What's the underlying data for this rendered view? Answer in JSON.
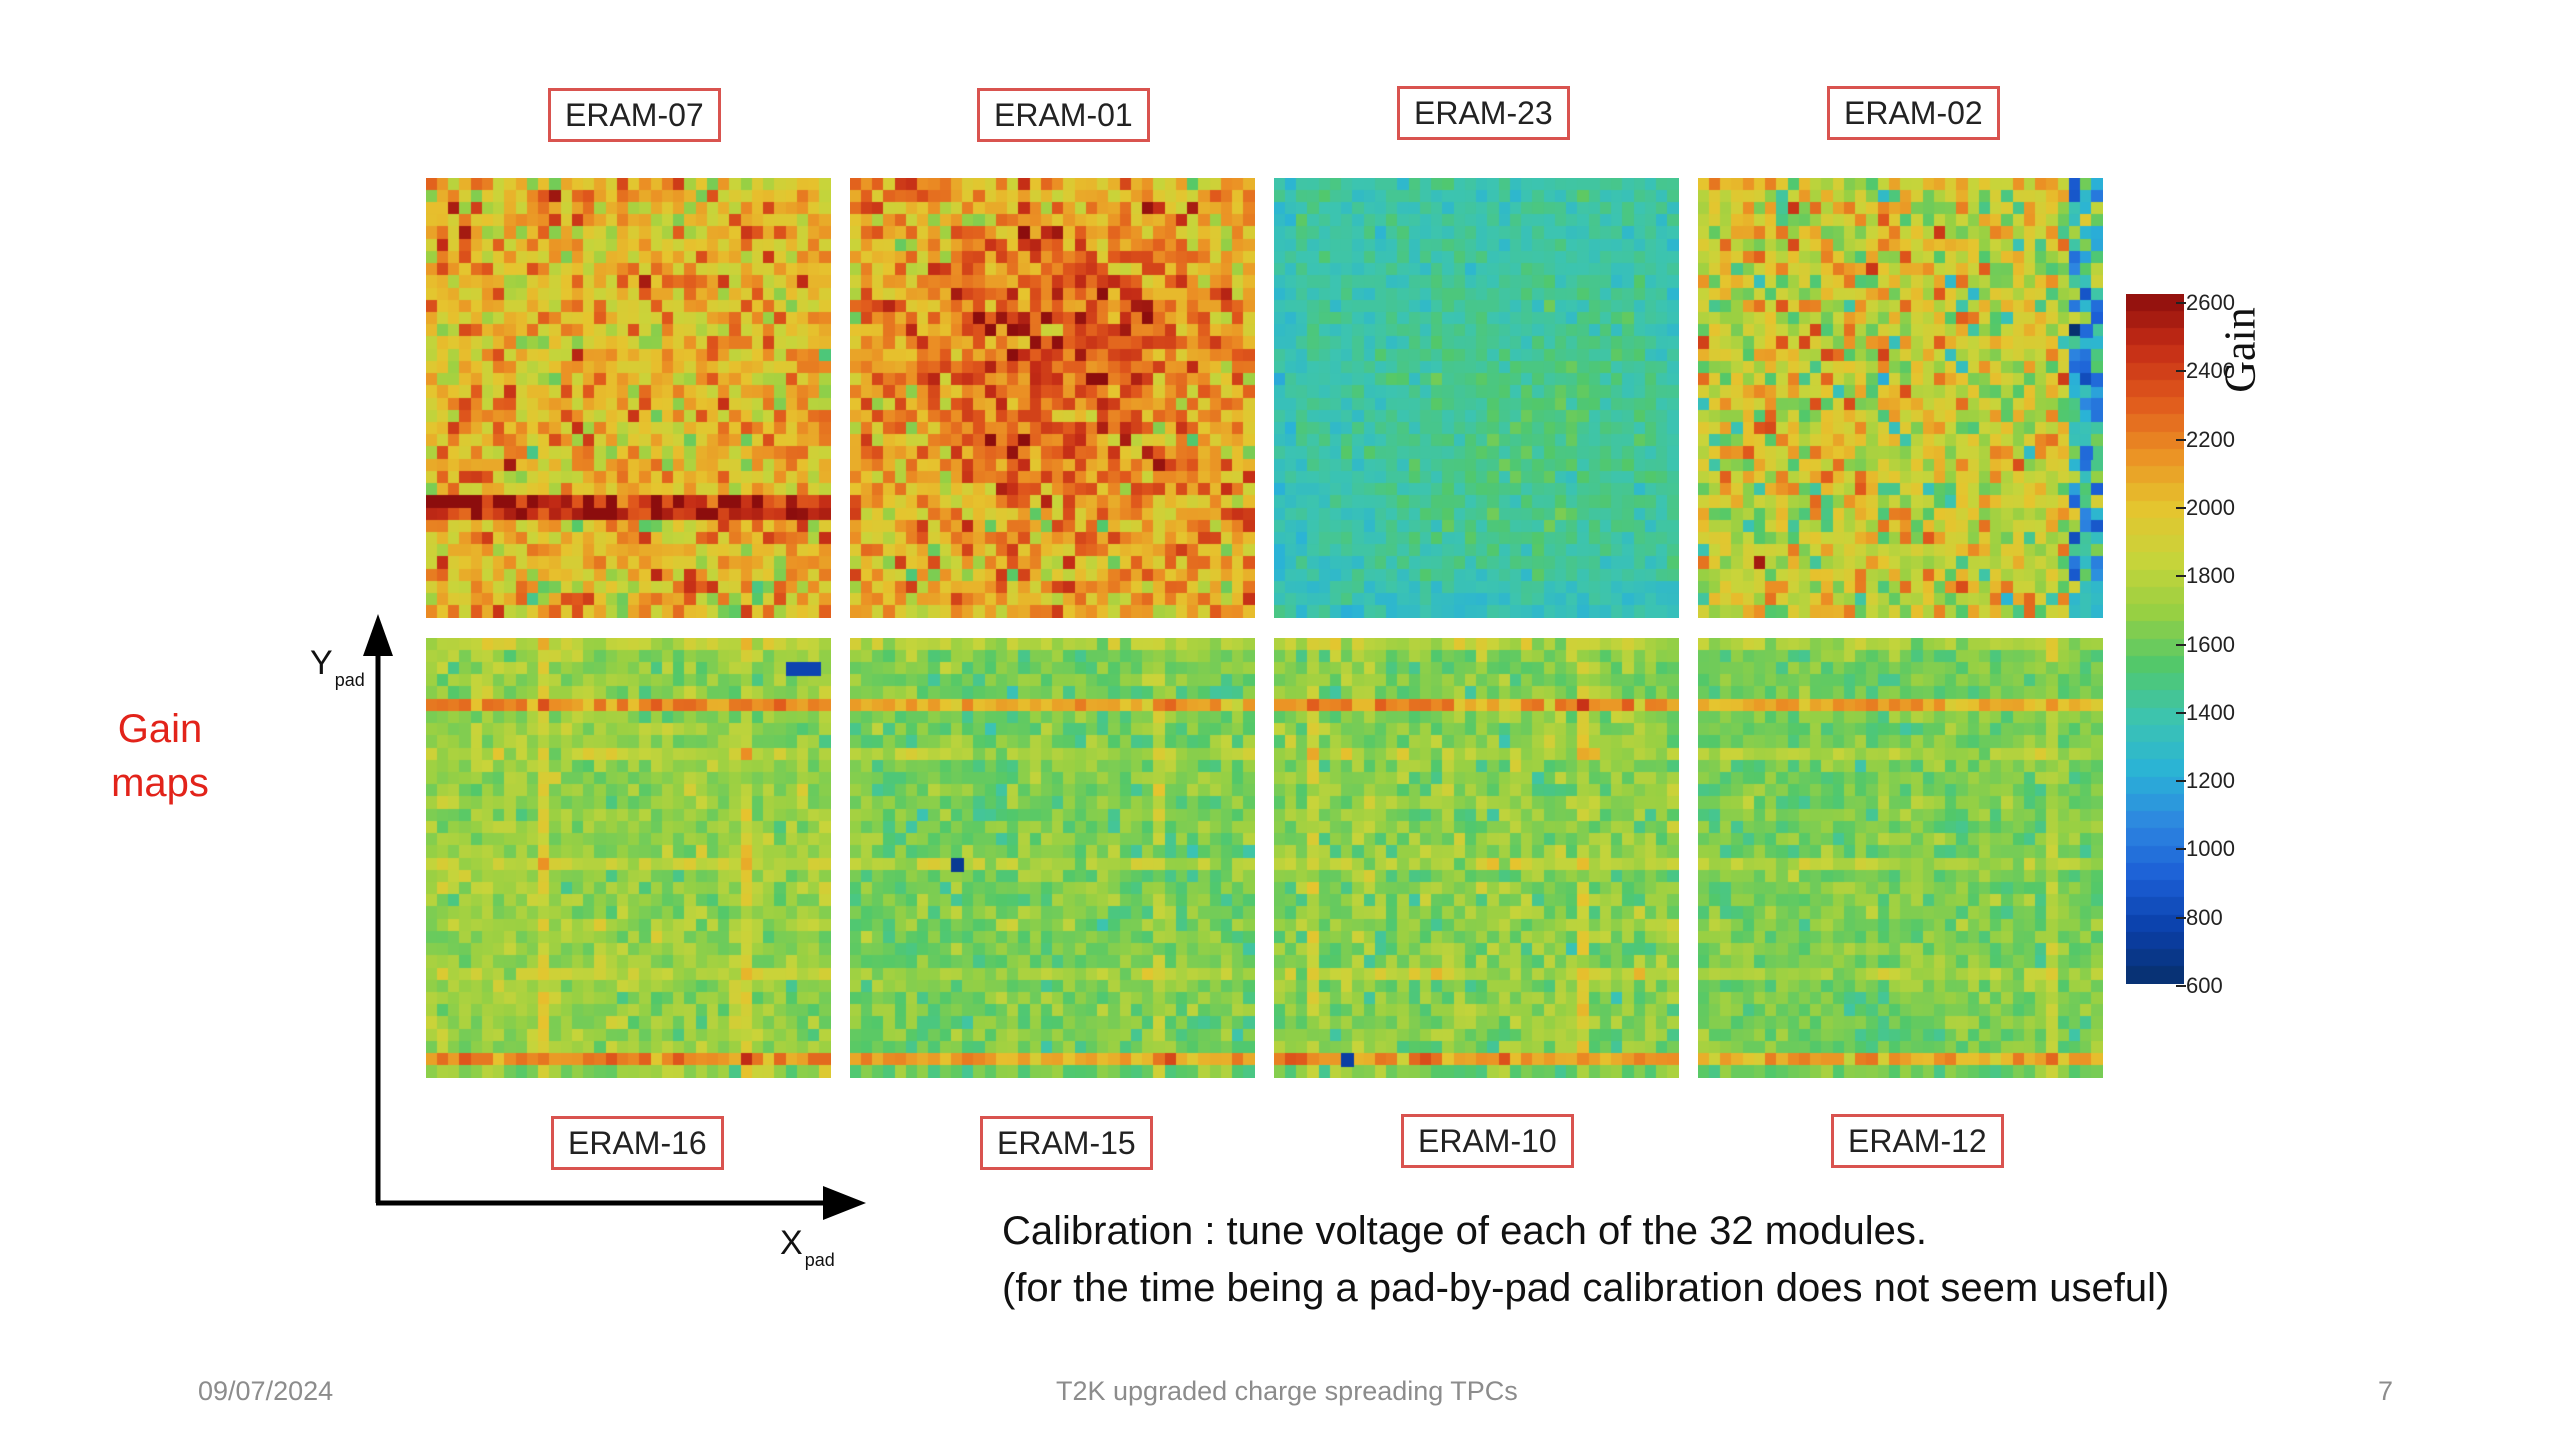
{
  "modules": [
    {
      "id": "ERAM-07",
      "row": 0,
      "col": 0,
      "level": 2000,
      "sigma": 190,
      "hot_rows": [
        26,
        27
      ],
      "extra_cols": [],
      "cold_spots": []
    },
    {
      "id": "ERAM-01",
      "row": 0,
      "col": 1,
      "level": 2050,
      "sigma": 190,
      "hot_rows": [],
      "extra_cols": [],
      "cold_spots": []
    },
    {
      "id": "ERAM-23",
      "row": 0,
      "col": 2,
      "level": 1390,
      "sigma": 60,
      "hot_rows": [],
      "extra_cols": [],
      "cold_spots": []
    },
    {
      "id": "ERAM-02",
      "row": 0,
      "col": 3,
      "level": 1850,
      "sigma": 230,
      "hot_rows": [],
      "extra_cols": [],
      "cold_spots": [
        [
          34,
          12
        ],
        [
          35,
          16
        ],
        [
          36,
          20
        ],
        [
          34,
          22
        ]
      ]
    },
    {
      "id": "ERAM-16",
      "row": 1,
      "col": 0,
      "level": 1680,
      "sigma": 90,
      "hot_rows": [
        5,
        34
      ],
      "extra_cols": [
        10,
        28
      ],
      "cold_spots": [
        [
          33,
          2
        ],
        [
          34,
          2
        ],
        [
          32,
          2
        ]
      ]
    },
    {
      "id": "ERAM-15",
      "row": 1,
      "col": 1,
      "level": 1600,
      "sigma": 90,
      "hot_rows": [
        5,
        34
      ],
      "extra_cols": [
        27
      ],
      "cold_spots": [
        [
          9,
          18
        ]
      ]
    },
    {
      "id": "ERAM-10",
      "row": 1,
      "col": 2,
      "level": 1640,
      "sigma": 100,
      "hot_rows": [
        5,
        34
      ],
      "extra_cols": [
        3,
        27
      ],
      "cold_spots": [
        [
          6,
          34
        ]
      ]
    },
    {
      "id": "ERAM-12",
      "row": 1,
      "col": 3,
      "level": 1600,
      "sigma": 80,
      "hot_rows": [
        5,
        34
      ],
      "extra_cols": [
        31
      ],
      "cold_spots": []
    }
  ],
  "colorbar": {
    "title": "Gain",
    "min": 600,
    "max": 2600,
    "ticks": [
      "2600",
      "2400",
      "2200",
      "2000",
      "1800",
      "1600",
      "1400",
      "1200",
      "1000",
      "800",
      "600"
    ],
    "palette": [
      "#08306b",
      "#0a3fa8",
      "#1c5fd6",
      "#2d86e0",
      "#2ab3d6",
      "#3cc4b0",
      "#52c86a",
      "#98d043",
      "#c8d43a",
      "#e6c42e",
      "#eb8f24",
      "#e0581c",
      "#c42c16",
      "#8c0d0d"
    ]
  },
  "side_label": [
    "Gain",
    "maps"
  ],
  "axes": {
    "y_main": "Y",
    "y_sub": "pad",
    "x_main": "X",
    "x_sub": "pad"
  },
  "note": {
    "line1": "Calibration : tune voltage of each of the 32 modules.",
    "line2": "(for the time being a pad-by-pad calibration does not seem useful)"
  },
  "footer": {
    "date": "09/07/2024",
    "title": "T2K upgraded charge spreading TPCs",
    "page": "7"
  }
}
